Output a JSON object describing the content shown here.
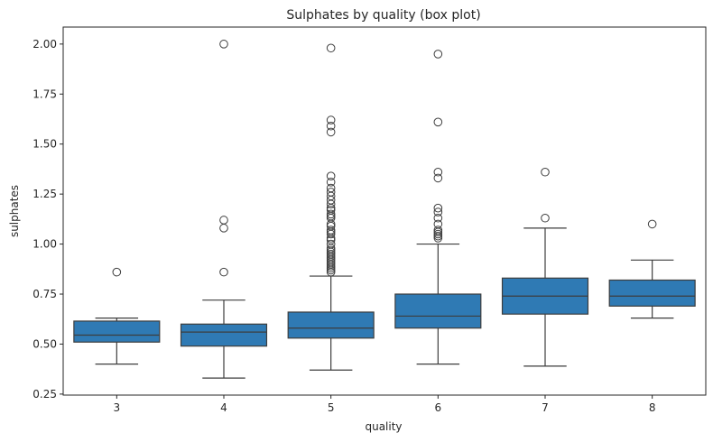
{
  "chart_data": {
    "type": "box",
    "title": "Sulphates by quality (box plot)",
    "xlabel": "quality",
    "ylabel": "sulphates",
    "ylim": [
      0.245,
      2.085
    ],
    "yticks": [
      "0.25",
      "0.50",
      "0.75",
      "1.00",
      "1.25",
      "1.50",
      "1.75",
      "2.00"
    ],
    "ytick_values": [
      0.25,
      0.5,
      0.75,
      1.0,
      1.25,
      1.5,
      1.75,
      2.0
    ],
    "grid": false,
    "box_color": "#2f7ab4",
    "line_color": "#3d3d3d",
    "categories": [
      "3",
      "4",
      "5",
      "6",
      "7",
      "8"
    ],
    "boxes": [
      {
        "category": "3",
        "whisker_low": 0.4,
        "q1": 0.51,
        "median": 0.545,
        "q3": 0.615,
        "whisker_high": 0.63,
        "outliers": [
          0.86
        ]
      },
      {
        "category": "4",
        "whisker_low": 0.33,
        "q1": 0.49,
        "median": 0.56,
        "q3": 0.6,
        "whisker_high": 0.72,
        "outliers": [
          0.86,
          1.08,
          1.12,
          2.0
        ]
      },
      {
        "category": "5",
        "whisker_low": 0.37,
        "q1": 0.53,
        "median": 0.58,
        "q3": 0.66,
        "whisker_high": 0.84,
        "outliers": [
          0.86,
          0.87,
          0.88,
          0.89,
          0.9,
          0.91,
          0.92,
          0.93,
          0.94,
          0.95,
          0.96,
          0.97,
          0.98,
          1.0,
          1.02,
          1.03,
          1.05,
          1.06,
          1.07,
          1.09,
          1.1,
          1.13,
          1.14,
          1.15,
          1.17,
          1.18,
          1.2,
          1.22,
          1.24,
          1.26,
          1.28,
          1.31,
          1.34,
          1.56,
          1.59,
          1.62,
          1.98
        ]
      },
      {
        "category": "6",
        "whisker_low": 0.4,
        "q1": 0.58,
        "median": 0.64,
        "q3": 0.75,
        "whisker_high": 1.0,
        "outliers": [
          1.03,
          1.04,
          1.05,
          1.06,
          1.07,
          1.1,
          1.13,
          1.16,
          1.18,
          1.33,
          1.36,
          1.61,
          1.95
        ]
      },
      {
        "category": "7",
        "whisker_low": 0.39,
        "q1": 0.65,
        "median": 0.74,
        "q3": 0.83,
        "whisker_high": 1.08,
        "outliers": [
          1.13,
          1.36
        ]
      },
      {
        "category": "8",
        "whisker_low": 0.63,
        "q1": 0.69,
        "median": 0.74,
        "q3": 0.82,
        "whisker_high": 0.92,
        "outliers": [
          1.1
        ]
      }
    ]
  }
}
